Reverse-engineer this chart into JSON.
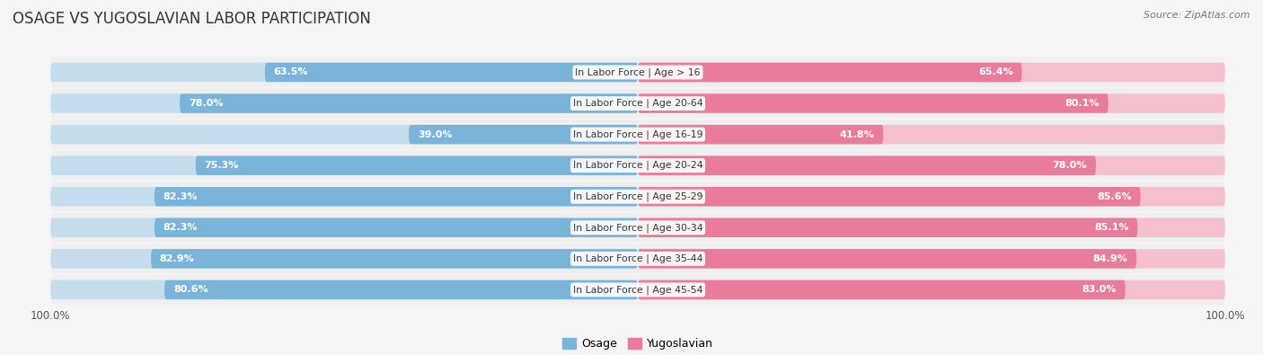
{
  "title": "OSAGE VS YUGOSLAVIAN LABOR PARTICIPATION",
  "source": "Source: ZipAtlas.com",
  "categories": [
    "In Labor Force | Age > 16",
    "In Labor Force | Age 20-64",
    "In Labor Force | Age 16-19",
    "In Labor Force | Age 20-24",
    "In Labor Force | Age 25-29",
    "In Labor Force | Age 30-34",
    "In Labor Force | Age 35-44",
    "In Labor Force | Age 45-54"
  ],
  "osage_values": [
    63.5,
    78.0,
    39.0,
    75.3,
    82.3,
    82.3,
    82.9,
    80.6
  ],
  "yugoslavian_values": [
    65.4,
    80.1,
    41.8,
    78.0,
    85.6,
    85.1,
    84.9,
    83.0
  ],
  "osage_color": "#7ab4d8",
  "osage_light_color": "#c5dded",
  "yugoslavian_color": "#e97c9b",
  "yugoslavian_light_color": "#f5c0ce",
  "row_bg_color": "#efefef",
  "row_outline_color": "#dddddd",
  "background_color": "#f5f5f5",
  "max_value": 100.0,
  "bar_height": 0.62,
  "title_fontsize": 12,
  "label_fontsize": 7.8,
  "value_fontsize": 8.0,
  "legend_fontsize": 9,
  "axis_label_fontsize": 8.5
}
